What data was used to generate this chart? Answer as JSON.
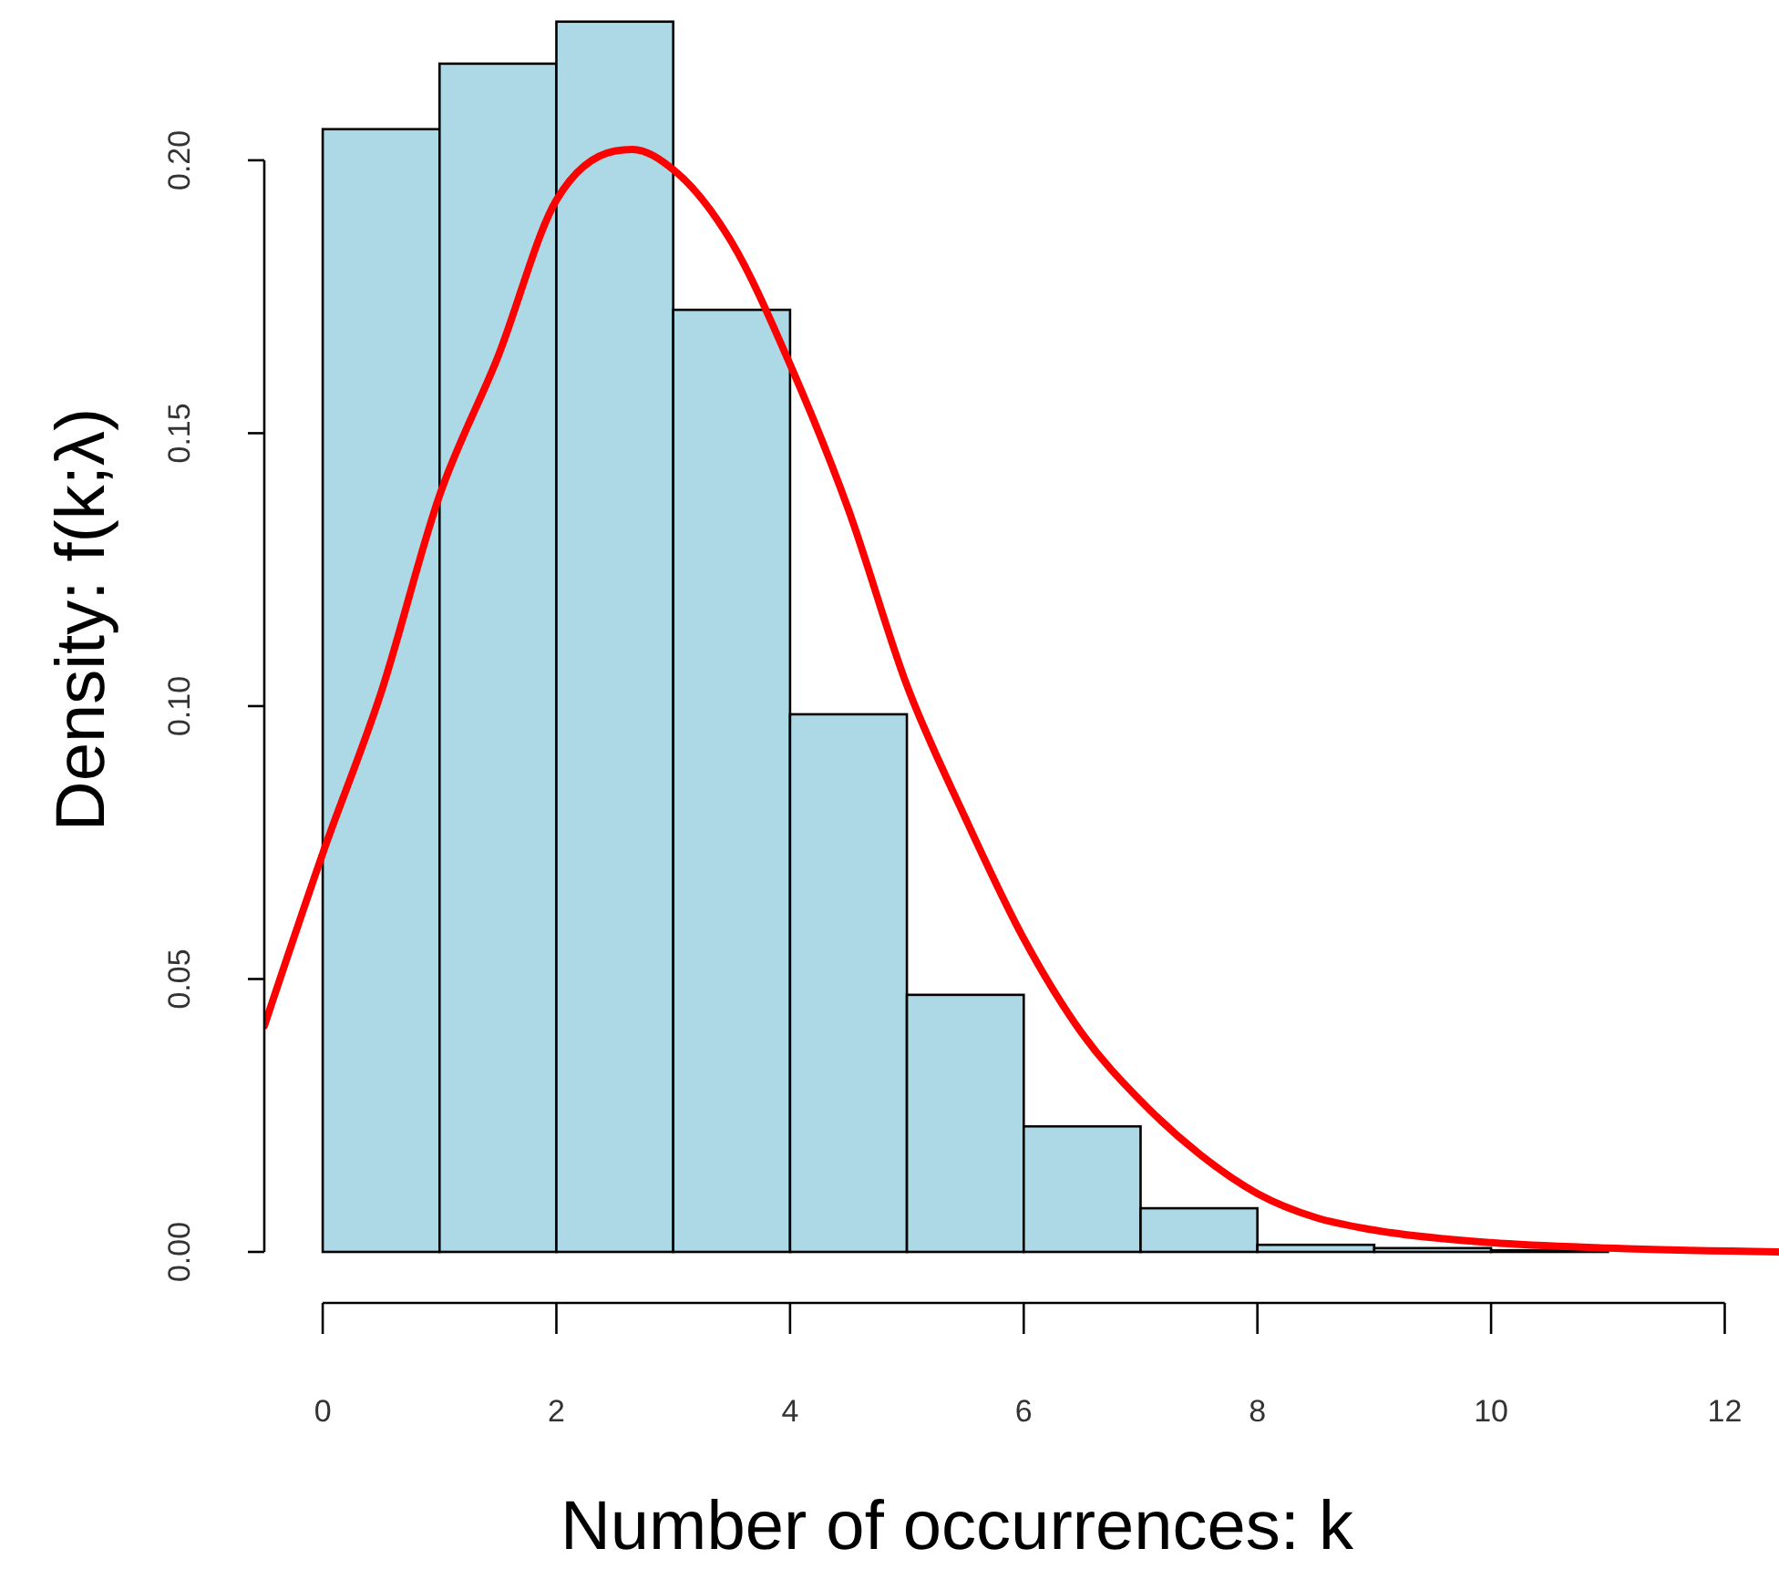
{
  "chart_data": {
    "type": "histogram",
    "xlabel": "Number of occurrences: k",
    "ylabel": "Density: f(k;λ)",
    "bins": [
      0,
      1,
      2,
      3,
      4,
      5,
      6,
      7,
      8,
      9,
      10,
      11
    ],
    "values": [
      0.2057,
      0.2177,
      0.2254,
      0.1726,
      0.0985,
      0.0471,
      0.023,
      0.008,
      0.0013,
      0.0007,
      0.0003
    ],
    "color": "#add8e6",
    "xlim": [
      -0.5,
      12.48
    ],
    "ylim": [
      0,
      0.23
    ],
    "xticks": [
      0,
      2,
      4,
      6,
      8,
      10,
      12
    ],
    "yticks": [
      {
        "value": 0,
        "label": "0.00"
      },
      {
        "value": 0.05,
        "label": "0.05"
      },
      {
        "value": 0.1,
        "label": "0.10"
      },
      {
        "value": 0.15,
        "label": "0.15"
      },
      {
        "value": 0.2,
        "label": "0.20"
      }
    ],
    "series": [
      {
        "type": "line",
        "color": "#ff0000",
        "x": [
          -0.5,
          0,
          0.5,
          1,
          1.5,
          2,
          2.5,
          2.65,
          3,
          3.5,
          4,
          4.5,
          5,
          5.5,
          6,
          6.5,
          7,
          7.5,
          8,
          8.5,
          9,
          10,
          11,
          12.48
        ],
        "values": [
          0.0414,
          0.073,
          0.1025,
          0.1386,
          0.164,
          0.1927,
          0.2017,
          0.202,
          0.1983,
          0.185,
          0.1626,
          0.136,
          0.1038,
          0.0795,
          0.0574,
          0.04,
          0.0277,
          0.018,
          0.0107,
          0.0063,
          0.004,
          0.0017,
          0.0007,
          0
        ]
      }
    ]
  }
}
